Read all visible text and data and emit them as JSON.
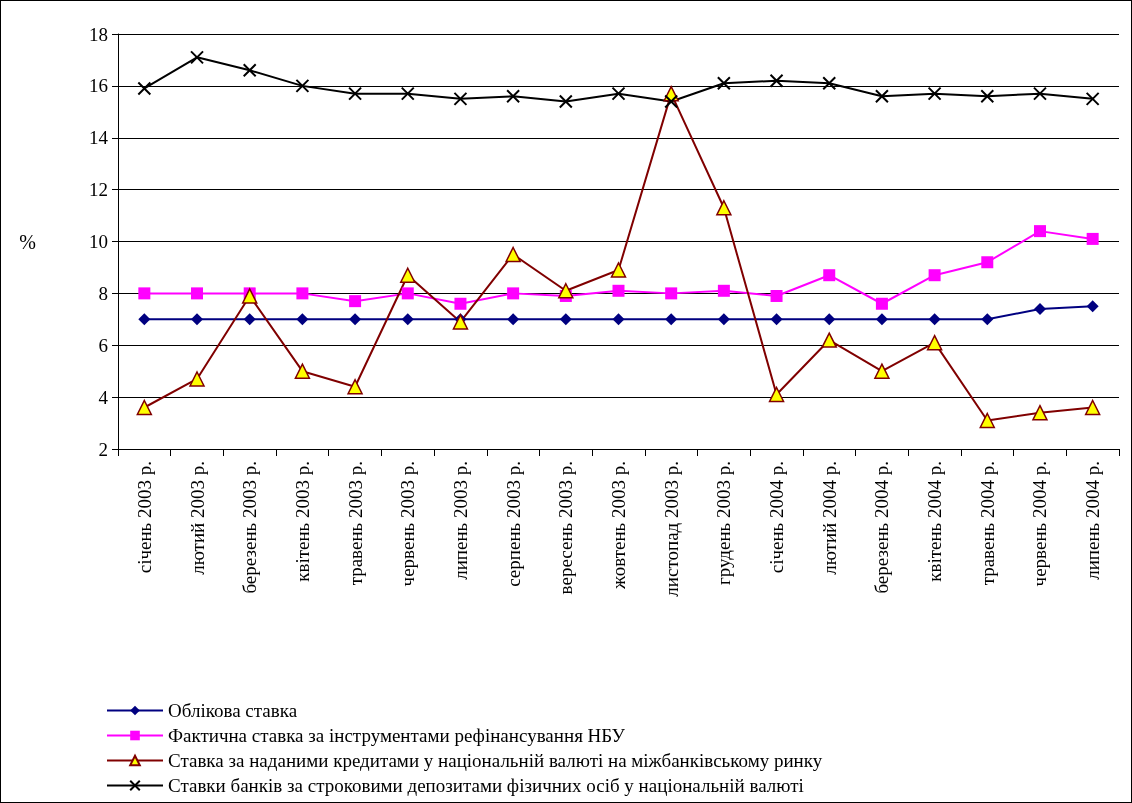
{
  "chart_data": {
    "type": "line",
    "ylabel": "%",
    "ylim": [
      2,
      18
    ],
    "yticks": [
      2,
      4,
      6,
      8,
      10,
      12,
      14,
      16,
      18
    ],
    "grid": "y",
    "legend": "bottom left",
    "categories": [
      "січень 2003 р.",
      "лютий 2003 р.",
      "березень 2003 р.",
      "квітень 2003 р.",
      "травень 2003 р.",
      "червень 2003 р.",
      "липень 2003 р.",
      "серпень 2003 р.",
      "вересень 2003 р.",
      "жовтень 2003 р.",
      "листопад 2003 р.",
      "грудень 2003 р.",
      "січень 2004 р.",
      "лютий 2004 р.",
      "березень 2004 р.",
      "квітень 2004 р.",
      "травень 2004 р.",
      "червень 2004 р.",
      "липень 2004 р."
    ],
    "series": [
      {
        "name": "Облікова ставка",
        "color": "#000080",
        "marker": "diamond",
        "values": [
          7,
          7,
          7,
          7,
          7,
          7,
          7,
          7,
          7,
          7,
          7,
          7,
          7,
          7,
          7,
          7,
          7,
          7.4,
          7.5
        ]
      },
      {
        "name": "Фактична ставка за інструментами рефінансування НБУ",
        "color": "#ff00ff",
        "marker": "square",
        "values": [
          8,
          8,
          8,
          8,
          7.7,
          8,
          7.6,
          8,
          7.9,
          8.1,
          8,
          8.1,
          7.9,
          8.7,
          7.6,
          8.7,
          9.2,
          10.4,
          10.1
        ]
      },
      {
        "name": "Ставка за наданими кредитами у національній валюті на міжбанківському ринку",
        "color": "#800000",
        "marker": "triangle",
        "values": [
          3.6,
          4.7,
          7.9,
          5.0,
          4.4,
          8.7,
          6.9,
          9.5,
          8.1,
          8.9,
          15.7,
          11.3,
          4.1,
          6.2,
          5.0,
          6.1,
          3.1,
          3.4,
          3.6
        ]
      },
      {
        "name": "Ставки банків за строковими депозитами фізичних осіб у національній валюті",
        "color": "#000000",
        "marker": "cross",
        "values": [
          15.9,
          17.1,
          16.6,
          16.0,
          15.7,
          15.7,
          15.5,
          15.6,
          15.4,
          15.7,
          15.4,
          16.1,
          16.2,
          16.1,
          15.6,
          15.7,
          15.6,
          15.7,
          15.5
        ]
      }
    ]
  }
}
